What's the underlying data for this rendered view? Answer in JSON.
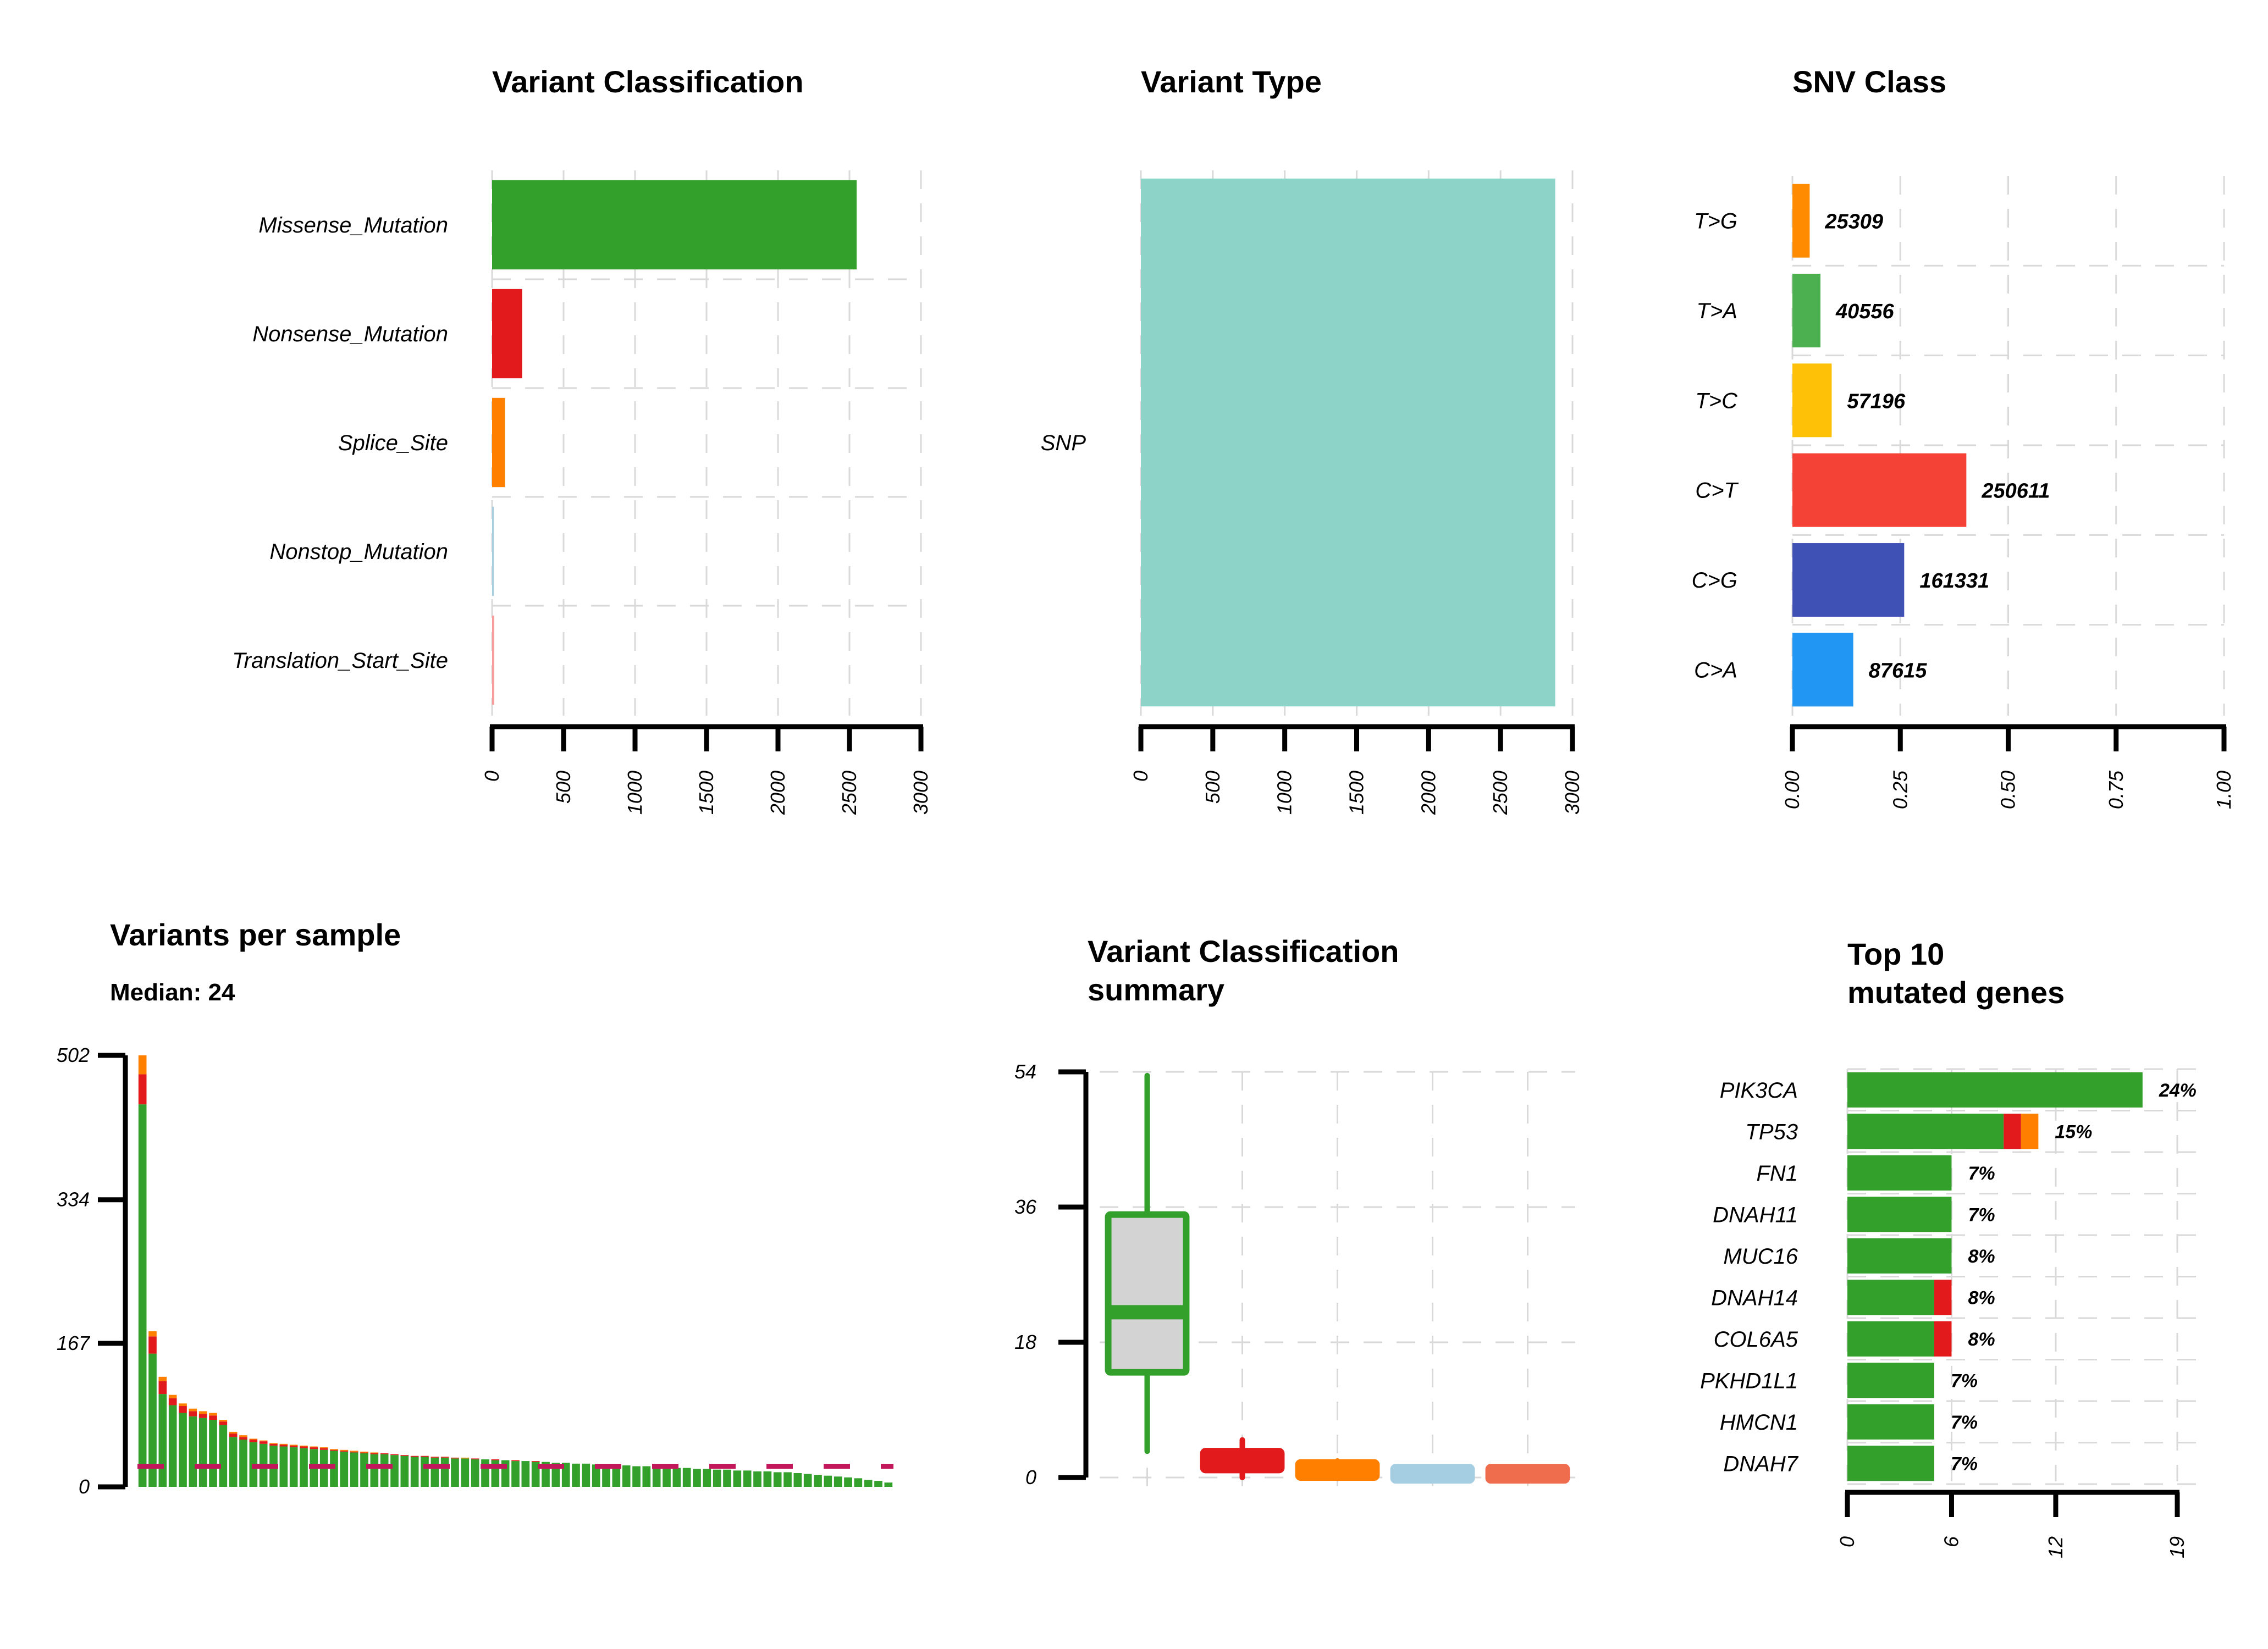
{
  "chart_data": [
    {
      "id": "variant_classification",
      "type": "bar",
      "title": "Variant Classification",
      "orientation": "horizontal",
      "categories": [
        "Missense_Mutation",
        "Nonsense_Mutation",
        "Splice_Site",
        "Nonstop_Mutation",
        "Translation_Start_Site"
      ],
      "values": [
        2550,
        210,
        90,
        12,
        15
      ],
      "colors": [
        "#33a02c",
        "#e31a1c",
        "#ff7f00",
        "#a6cee3",
        "#fb9a99"
      ],
      "xlim": [
        0,
        3000
      ],
      "xticks": [
        "0",
        "500",
        "1000",
        "1500",
        "2000",
        "2500",
        "3000"
      ],
      "grid": true
    },
    {
      "id": "variant_type",
      "type": "bar",
      "title": "Variant Type",
      "orientation": "horizontal",
      "categories": [
        "SNP"
      ],
      "values": [
        2880
      ],
      "colors": [
        "#8dd3c7"
      ],
      "xlim": [
        0,
        3000
      ],
      "xticks": [
        "0",
        "500",
        "1000",
        "1500",
        "2000",
        "2500",
        "3000"
      ],
      "grid": true
    },
    {
      "id": "snv_class",
      "type": "bar",
      "title": "SNV Class",
      "orientation": "horizontal",
      "categories": [
        "T>G",
        "T>A",
        "T>C",
        "C>T",
        "C>G",
        "C>A"
      ],
      "values": [
        0.04,
        0.065,
        0.091,
        0.403,
        0.259,
        0.141
      ],
      "labels": [
        "25309",
        "40556",
        "57196",
        "250611",
        "161331",
        "87615"
      ],
      "colors": [
        "#ff8c00",
        "#4caf50",
        "#ffc107",
        "#f44336",
        "#3f51b5",
        "#2196f3"
      ],
      "xlim": [
        0,
        1
      ],
      "xticks": [
        "0.00",
        "0.25",
        "0.50",
        "0.75",
        "1.00"
      ],
      "grid": true
    },
    {
      "id": "variants_per_sample",
      "type": "bar",
      "stacked": true,
      "title": "Variants per sample",
      "subtitle": "Median: 24",
      "ylim": [
        0,
        502
      ],
      "yticks": [
        "0",
        "167",
        "334",
        "502"
      ],
      "median": 24,
      "median_color": "#c2185b",
      "series_order": [
        "Missense_Mutation",
        "Nonsense_Mutation",
        "Splice_Site"
      ],
      "colors": [
        "#33a02c",
        "#e31a1c",
        "#ff7f00"
      ],
      "samples": [
        [
          445,
          35,
          22
        ],
        [
          155,
          20,
          6
        ],
        [
          108,
          15,
          5
        ],
        [
          95,
          8,
          4
        ],
        [
          86,
          8,
          3
        ],
        [
          82,
          6,
          3
        ],
        [
          80,
          5,
          3
        ],
        [
          78,
          5,
          3
        ],
        [
          72,
          4,
          2
        ],
        [
          58,
          4,
          2
        ],
        [
          55,
          3,
          2
        ],
        [
          52,
          3,
          1
        ],
        [
          50,
          3,
          1
        ],
        [
          48,
          2,
          1
        ],
        [
          47,
          2,
          1
        ],
        [
          46,
          2,
          1
        ],
        [
          45,
          2,
          1
        ],
        [
          44,
          2,
          1
        ],
        [
          43,
          2,
          1
        ],
        [
          42,
          1,
          1
        ],
        [
          41,
          1,
          1
        ],
        [
          40,
          1,
          1
        ],
        [
          39,
          1,
          1
        ],
        [
          38,
          1,
          1
        ],
        [
          38,
          1,
          0
        ],
        [
          37,
          1,
          0
        ],
        [
          36,
          1,
          0
        ],
        [
          35,
          1,
          0
        ],
        [
          35,
          1,
          0
        ],
        [
          34,
          1,
          0
        ],
        [
          34,
          1,
          0
        ],
        [
          33,
          1,
          0
        ],
        [
          33,
          0,
          1
        ],
        [
          32,
          1,
          0
        ],
        [
          32,
          0,
          0
        ],
        [
          31,
          1,
          0
        ],
        [
          31,
          0,
          0
        ],
        [
          30,
          1,
          0
        ],
        [
          30,
          0,
          0
        ],
        [
          29,
          1,
          0
        ],
        [
          29,
          0,
          0
        ],
        [
          28,
          0,
          0
        ],
        [
          28,
          0,
          0
        ],
        [
          27,
          0,
          0
        ],
        [
          27,
          0,
          0
        ],
        [
          26,
          0,
          0
        ],
        [
          26,
          0,
          0
        ],
        [
          25,
          0,
          0
        ],
        [
          25,
          0,
          0
        ],
        [
          24,
          0,
          0
        ],
        [
          24,
          0,
          0
        ],
        [
          23,
          0,
          0
        ],
        [
          23,
          0,
          0
        ],
        [
          22,
          0,
          0
        ],
        [
          22,
          0,
          0
        ],
        [
          21,
          0,
          0
        ],
        [
          21,
          0,
          0
        ],
        [
          20,
          0,
          0
        ],
        [
          20,
          0,
          0
        ],
        [
          19,
          0,
          0
        ],
        [
          19,
          0,
          0
        ],
        [
          18,
          0,
          0
        ],
        [
          18,
          0,
          0
        ],
        [
          17,
          0,
          0
        ],
        [
          17,
          0,
          0
        ],
        [
          16,
          0,
          0
        ],
        [
          15,
          0,
          0
        ],
        [
          14,
          0,
          0
        ],
        [
          13,
          0,
          0
        ],
        [
          12,
          0,
          0
        ],
        [
          11,
          0,
          0
        ],
        [
          10,
          0,
          0
        ],
        [
          8,
          0,
          0
        ],
        [
          7,
          0,
          0
        ],
        [
          5,
          0,
          0
        ]
      ]
    },
    {
      "id": "variant_classification_summary",
      "type": "boxplot",
      "title": [
        "Variant Classification",
        "summary"
      ],
      "ylim": [
        0,
        54
      ],
      "yticks": [
        "0",
        "18",
        "36",
        "54"
      ],
      "boxes": [
        {
          "color": "#33a02c",
          "min": 3.5,
          "q1": 14,
          "median": 22,
          "q3": 35,
          "max": 53.5
        },
        {
          "color": "#e31a1c",
          "min": 0,
          "q1": 1,
          "median": 2,
          "q3": 3.5,
          "max": 5
        },
        {
          "color": "#ff7f00",
          "min": 0,
          "q1": 0,
          "median": 0.8,
          "q3": 2,
          "max": 2.2
        },
        {
          "color": "#a6cee3",
          "min": 0,
          "q1": 0,
          "median": 0,
          "q3": 1,
          "max": 1
        },
        {
          "color": "#ef6c4d",
          "min": 0,
          "q1": 0,
          "median": 0,
          "q3": 1,
          "max": 1
        }
      ]
    },
    {
      "id": "top10_mutated_genes",
      "type": "bar",
      "stacked": true,
      "orientation": "horizontal",
      "title": [
        "Top 10",
        "mutated genes"
      ],
      "categories": [
        "PIK3CA",
        "TP53",
        "FN1",
        "DNAH11",
        "MUC16",
        "DNAH14",
        "COL6A5",
        "PKHD1L1",
        "HMCN1",
        "DNAH7"
      ],
      "series": [
        {
          "color": "#33a02c",
          "values": [
            17,
            9,
            6,
            6,
            6,
            5,
            5,
            5,
            5,
            5
          ]
        },
        {
          "color": "#e31a1c",
          "values": [
            0,
            1,
            0,
            0,
            0,
            1,
            1,
            0,
            0,
            0
          ]
        },
        {
          "color": "#ff7f00",
          "values": [
            0,
            1,
            0,
            0,
            0,
            0,
            0,
            0,
            0,
            0
          ]
        }
      ],
      "labels": [
        "24%",
        "15%",
        "7%",
        "7%",
        "8%",
        "8%",
        "8%",
        "7%",
        "7%",
        "7%"
      ],
      "xlim": [
        0,
        19
      ],
      "xticks": [
        "0",
        "6",
        "12",
        "19"
      ],
      "grid": true
    }
  ]
}
